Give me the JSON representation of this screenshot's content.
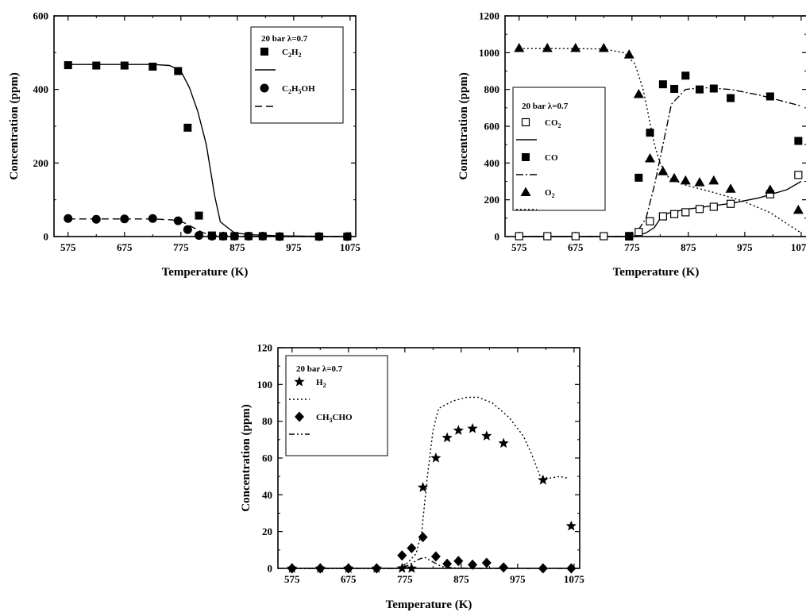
{
  "chart_data": [
    {
      "type": "scatter",
      "xlabel": "Temperature (K)",
      "ylabel": "Concentration (ppm)",
      "xlim": [
        550,
        1085
      ],
      "ylim": [
        0,
        600
      ],
      "xticks": [
        "575",
        "675",
        "775",
        "875",
        "975",
        "1075"
      ],
      "yticks": [
        "0",
        "200",
        "400",
        "600"
      ],
      "legend": {
        "title": "20 bar λ=0.7",
        "placement": "top-right",
        "entries": [
          {
            "label": "C2H2",
            "label_main": "C",
            "label_sub": "2",
            "label_main2": "H",
            "label_sub2": "2",
            "marker": "square-filled"
          },
          {
            "label": "",
            "line": "solid"
          },
          {
            "label": "C2H5OH",
            "label_main": "C",
            "label_sub": "2",
            "label_main2": "H",
            "label_sub2": "5",
            "label_tail": "OH",
            "marker": "circle-filled"
          },
          {
            "label": "",
            "line": "dashed"
          }
        ]
      },
      "series": [
        {
          "name": "C2H2",
          "kind": "points",
          "marker": "square-filled",
          "x": [
            575,
            625,
            675,
            725,
            770,
            787,
            807,
            830,
            850,
            870,
            895,
            920,
            950,
            1020,
            1070
          ],
          "y": [
            466,
            465,
            465,
            462,
            450,
            296,
            57,
            3,
            1,
            1,
            1,
            1,
            0,
            0,
            0
          ]
        },
        {
          "kind": "line",
          "style": "solid",
          "x": [
            575,
            625,
            675,
            725,
            755,
            775,
            790,
            805,
            820,
            835,
            845,
            870,
            900,
            950,
            1075
          ],
          "y": [
            468,
            468,
            468,
            468,
            465,
            450,
            405,
            340,
            250,
            110,
            40,
            10,
            5,
            2,
            0
          ]
        },
        {
          "name": "C2H5OH",
          "kind": "points",
          "marker": "circle-filled",
          "x": [
            575,
            625,
            675,
            725,
            770,
            787,
            807,
            830,
            850,
            870,
            895,
            920,
            950,
            1020,
            1070
          ],
          "y": [
            49,
            47,
            48,
            49,
            43,
            19,
            3,
            1,
            1,
            1,
            1,
            1,
            0,
            0,
            0
          ]
        },
        {
          "kind": "line",
          "style": "dashed",
          "x": [
            575,
            625,
            675,
            725,
            760,
            780,
            800,
            815,
            830,
            870,
            950,
            1075
          ],
          "y": [
            48,
            48,
            48,
            48,
            45,
            38,
            22,
            10,
            4,
            1,
            0,
            0
          ]
        }
      ]
    },
    {
      "type": "scatter",
      "xlabel": "Temperature (K)",
      "ylabel": "Concentration (ppm)",
      "xlim": [
        550,
        1085
      ],
      "ylim": [
        0,
        1200
      ],
      "xticks": [
        "575",
        "675",
        "775",
        "875",
        "975",
        "1075"
      ],
      "yticks": [
        "0",
        "200",
        "400",
        "600",
        "800",
        "1000",
        "1200"
      ],
      "legend": {
        "title": "20 bar λ=0.7",
        "placement": "center-left",
        "entries": [
          {
            "label": "CO2",
            "label_main": "CO",
            "label_sub": "2",
            "marker": "square-open"
          },
          {
            "label": "",
            "line": "solid"
          },
          {
            "label": "CO",
            "label_main": "CO",
            "marker": "square-filled"
          },
          {
            "label": "",
            "line": "dashdot"
          },
          {
            "label": "O2",
            "label_main": "O",
            "label_sub": "2",
            "marker": "triangle-filled"
          },
          {
            "label": "",
            "line": "dotted"
          }
        ]
      },
      "series": [
        {
          "name": "CO2",
          "kind": "points",
          "marker": "square-open",
          "x": [
            575,
            625,
            675,
            725,
            770,
            787,
            807,
            830,
            850,
            870,
            895,
            920,
            950,
            1020,
            1070
          ],
          "y": [
            2,
            2,
            2,
            2,
            3,
            25,
            83,
            110,
            122,
            132,
            150,
            162,
            178,
            230,
            335
          ]
        },
        {
          "kind": "line",
          "style": "solid",
          "x": [
            575,
            770,
            785,
            800,
            815,
            830,
            850,
            875,
            900,
            950,
            1000,
            1050,
            1075
          ],
          "y": [
            0,
            0,
            5,
            20,
            50,
            120,
            135,
            150,
            160,
            180,
            210,
            255,
            300
          ]
        },
        {
          "name": "CO",
          "kind": "points",
          "marker": "square-filled",
          "x": [
            770,
            787,
            807,
            830,
            850,
            870,
            895,
            920,
            950,
            1020,
            1070
          ],
          "y": [
            0,
            320,
            565,
            828,
            803,
            875,
            800,
            805,
            753,
            762,
            520
          ]
        },
        {
          "kind": "line",
          "style": "dashdot",
          "x": [
            575,
            770,
            785,
            800,
            815,
            830,
            845,
            870,
            900,
            950,
            1000,
            1075
          ],
          "y": [
            0,
            0,
            30,
            100,
            280,
            500,
            720,
            800,
            810,
            800,
            770,
            710
          ]
        },
        {
          "name": "O2",
          "kind": "points",
          "marker": "triangle-filled",
          "x": [
            575,
            625,
            675,
            725,
            770,
            787,
            807,
            830,
            850,
            870,
            895,
            920,
            950,
            1020,
            1070
          ],
          "y": [
            1025,
            1025,
            1025,
            1025,
            990,
            775,
            425,
            355,
            318,
            305,
            295,
            305,
            260,
            255,
            145
          ]
        },
        {
          "kind": "line",
          "style": "dotted",
          "x": [
            575,
            625,
            675,
            725,
            760,
            780,
            795,
            805,
            815,
            825,
            840,
            870,
            920,
            970,
            1020,
            1050,
            1075
          ],
          "y": [
            1022,
            1022,
            1022,
            1020,
            1000,
            940,
            800,
            650,
            500,
            400,
            320,
            280,
            240,
            195,
            130,
            70,
            20
          ]
        }
      ]
    },
    {
      "type": "scatter",
      "xlabel": "Temperature (K)",
      "ylabel": "Concentration (ppm)",
      "xlim": [
        550,
        1085
      ],
      "ylim": [
        0,
        120
      ],
      "xticks": [
        "575",
        "675",
        "775",
        "875",
        "975",
        "1075"
      ],
      "yticks": [
        "0",
        "20",
        "40",
        "60",
        "80",
        "100",
        "120"
      ],
      "legend": {
        "title": "20 bar λ=0.7",
        "placement": "top-left",
        "entries": [
          {
            "label": "H2",
            "label_main": "H",
            "label_sub": "2",
            "marker": "star-filled"
          },
          {
            "label": "",
            "line": "dotted"
          },
          {
            "label": "CH3CHO",
            "label_main": "CH",
            "label_sub": "3",
            "label_main2": "CHO",
            "marker": "diamond-filled"
          },
          {
            "label": "",
            "line": "dashdotdot"
          }
        ]
      },
      "series": [
        {
          "name": "H2",
          "kind": "points",
          "marker": "star-filled",
          "x": [
            575,
            625,
            675,
            725,
            770,
            787,
            807,
            830,
            850,
            870,
            895,
            920,
            950,
            1020,
            1070
          ],
          "y": [
            0,
            0,
            0,
            0,
            0,
            0,
            44,
            60,
            71,
            75,
            76,
            72,
            68,
            48,
            23
          ]
        },
        {
          "kind": "line",
          "style": "dotted",
          "x": [
            575,
            760,
            780,
            795,
            805,
            815,
            825,
            835,
            860,
            885,
            905,
            930,
            960,
            985,
            1000,
            1015,
            1030,
            1050,
            1065
          ],
          "y": [
            0,
            0,
            3,
            8,
            20,
            50,
            75,
            87,
            91,
            93,
            93,
            90,
            82,
            72,
            62,
            50,
            49,
            50,
            49
          ]
        },
        {
          "name": "CH3CHO",
          "kind": "points",
          "marker": "diamond-filled",
          "x": [
            575,
            625,
            675,
            725,
            770,
            787,
            807,
            830,
            850,
            870,
            895,
            920,
            950,
            1020,
            1070
          ],
          "y": [
            0,
            0,
            0,
            0,
            7,
            11,
            17,
            6.5,
            2.5,
            4,
            2,
            3,
            0.5,
            0,
            0
          ]
        },
        {
          "kind": "line",
          "style": "dashdotdot",
          "x": [
            575,
            760,
            780,
            800,
            810,
            825,
            840,
            860,
            900,
            1075
          ],
          "y": [
            0,
            0,
            1.5,
            5,
            6,
            3.5,
            1,
            0.3,
            0,
            0
          ]
        }
      ]
    }
  ]
}
